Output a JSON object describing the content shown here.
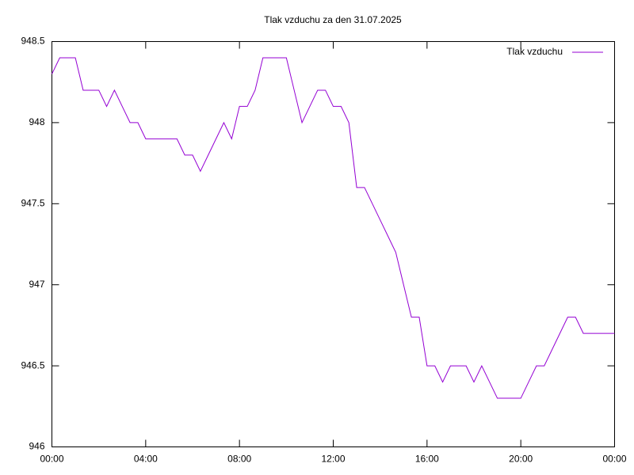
{
  "chart_data": {
    "type": "line",
    "title": "Tlak vzduchu za den 31.07.2025",
    "x": [
      0,
      20,
      40,
      60,
      80,
      100,
      120,
      140,
      160,
      180,
      200,
      220,
      240,
      260,
      280,
      300,
      320,
      340,
      360,
      380,
      400,
      420,
      440,
      460,
      480,
      500,
      520,
      540,
      560,
      580,
      600,
      620,
      640,
      660,
      680,
      700,
      720,
      740,
      760,
      780,
      800,
      820,
      840,
      860,
      880,
      900,
      920,
      940,
      960,
      980,
      1000,
      1020,
      1040,
      1060,
      1080,
      1100,
      1120,
      1140,
      1160,
      1180,
      1200,
      1220,
      1240,
      1260,
      1280,
      1300,
      1320,
      1340,
      1360,
      1380,
      1400,
      1420,
      1440
    ],
    "series": [
      {
        "name": "Tlak vzduchu",
        "color": "#9400d3",
        "values": [
          948.3,
          948.4,
          948.4,
          948.4,
          948.2,
          948.2,
          948.2,
          948.1,
          948.2,
          948.1,
          948.0,
          948.0,
          947.9,
          947.9,
          947.9,
          947.9,
          947.9,
          947.8,
          947.8,
          947.7,
          947.8,
          947.9,
          948.0,
          947.9,
          948.1,
          948.1,
          948.2,
          948.4,
          948.4,
          948.4,
          948.4,
          948.2,
          948.0,
          948.1,
          948.2,
          948.2,
          948.1,
          948.1,
          948.0,
          947.6,
          947.6,
          947.5,
          947.4,
          947.3,
          947.2,
          947.0,
          946.8,
          946.8,
          946.5,
          946.5,
          946.4,
          946.5,
          946.5,
          946.5,
          946.4,
          946.5,
          946.4,
          946.3,
          946.3,
          946.3,
          946.3,
          946.4,
          946.5,
          946.5,
          946.6,
          946.7,
          946.8,
          946.8,
          946.7,
          946.7,
          946.7,
          946.7,
          946.7
        ]
      }
    ],
    "xlim": [
      0,
      1440
    ],
    "xticks": [
      {
        "value": 0,
        "label": "00:00"
      },
      {
        "value": 240,
        "label": "04:00"
      },
      {
        "value": 480,
        "label": "08:00"
      },
      {
        "value": 720,
        "label": "12:00"
      },
      {
        "value": 960,
        "label": "16:00"
      },
      {
        "value": 1200,
        "label": "20:00"
      },
      {
        "value": 1440,
        "label": "00:00"
      }
    ],
    "ylim": [
      946,
      948.5
    ],
    "yticks": [
      946,
      946.5,
      947,
      947.5,
      948,
      948.5
    ],
    "grid": false,
    "legend": "top-right"
  }
}
